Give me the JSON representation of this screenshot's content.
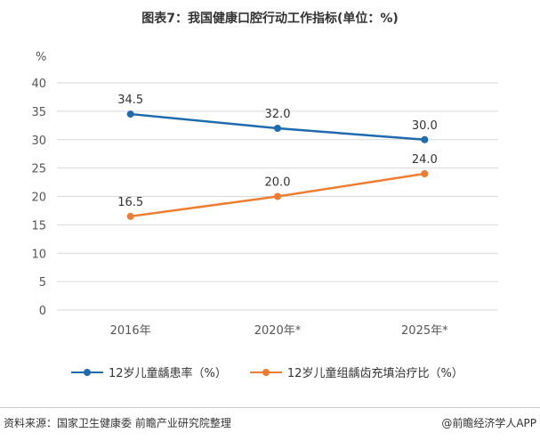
{
  "title": "图表7：我国健康口腔行动工作指标(单位：%)",
  "unit_label": "%",
  "chart_data": {
    "type": "line",
    "title": "图表7：我国健康口腔行动工作指标(单位：%)",
    "xlabel": "",
    "ylabel": "%",
    "categories": [
      "2016年",
      "2020年*",
      "2025年*"
    ],
    "ylim": [
      0,
      40
    ],
    "yticks": [
      0,
      5,
      10,
      15,
      20,
      25,
      30,
      35,
      40
    ],
    "grid": true,
    "legend_position": "bottom",
    "series": [
      {
        "name": "12岁儿童龋患率（%）",
        "values": [
          34.5,
          32.0,
          30.0
        ],
        "labels": [
          "34.5",
          "32.0",
          "30.0"
        ],
        "color": "#1f6bb0"
      },
      {
        "name": "12岁儿童组龋齿充填治疗比（%）",
        "values": [
          16.5,
          20.0,
          24.0
        ],
        "labels": [
          "16.5",
          "20.0",
          "24.0"
        ],
        "color": "#ed7d31"
      }
    ]
  },
  "footer": {
    "source": "资料来源：国家卫生健康委 前瞻产业研究院整理",
    "brand": "@前瞻经济学人APP"
  }
}
